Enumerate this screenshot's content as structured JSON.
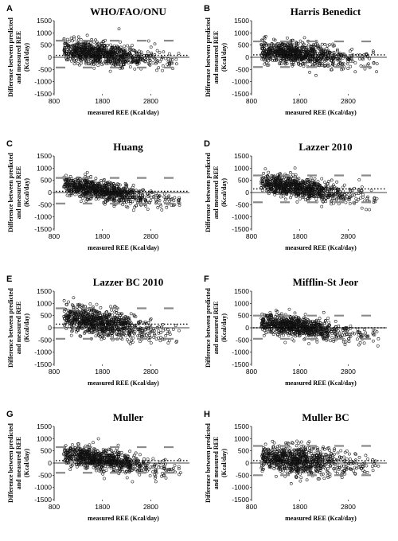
{
  "chart_data": [
    {
      "type": "scatter",
      "letter": "A",
      "title": "WHO/FAO/ONU",
      "xlabel": "measured REE    (Kcal/day)",
      "ylabel": [
        "Difference between predicted",
        "and measured REE",
        "(Kcal/day)"
      ],
      "xlim": [
        800,
        3600
      ],
      "ylim": [
        -1500,
        1500
      ],
      "xticks": [
        800,
        1800,
        2800
      ],
      "yticks": [
        1500,
        1000,
        500,
        0,
        -500,
        -1000,
        -1500
      ],
      "mean_bias": 80,
      "upper_loa": 680,
      "lower_loa": -420,
      "trend": {
        "x_center": 1800,
        "y_center": 150,
        "slope": -0.22,
        "spread": 230
      }
    },
    {
      "type": "scatter",
      "letter": "B",
      "title": "Harris Benedict",
      "xlabel": "measured REE    (Kcal/day)",
      "ylabel": [
        "Difference between predicted",
        "and measured REE",
        "(Kcal/day)"
      ],
      "xlim": [
        800,
        3600
      ],
      "ylim": [
        -1500,
        1500
      ],
      "xticks": [
        800,
        1800,
        2800
      ],
      "yticks": [
        1500,
        1000,
        500,
        0,
        -500,
        -1000,
        -1500
      ],
      "mean_bias": 100,
      "upper_loa": 650,
      "lower_loa": -400,
      "trend": {
        "x_center": 1800,
        "y_center": 130,
        "slope": -0.2,
        "spread": 220
      }
    },
    {
      "type": "scatter",
      "letter": "C",
      "title": "Huang",
      "xlabel": "measured REE    (Kcal/day)",
      "ylabel": [
        "Difference between predicted",
        "and measured REE",
        "(Kcal/day)"
      ],
      "xlim": [
        800,
        3600
      ],
      "ylim": [
        -1500,
        1500
      ],
      "xticks": [
        800,
        1800,
        2800
      ],
      "yticks": [
        1500,
        1000,
        500,
        0,
        -500,
        -1000,
        -1500
      ],
      "mean_bias": 50,
      "upper_loa": 600,
      "lower_loa": -450,
      "trend": {
        "x_center": 1800,
        "y_center": 80,
        "slope": -0.3,
        "spread": 200
      }
    },
    {
      "type": "scatter",
      "letter": "D",
      "title": "Lazzer 2010",
      "xlabel": "measured REE    (Kcal/day)",
      "ylabel": [
        "Difference between predicted",
        "and measured REE",
        "(Kcal/day)"
      ],
      "xlim": [
        800,
        3600
      ],
      "ylim": [
        -1500,
        1500
      ],
      "xticks": [
        800,
        1800,
        2800
      ],
      "yticks": [
        1500,
        1000,
        500,
        0,
        -500,
        -1000,
        -1500
      ],
      "mean_bias": 150,
      "upper_loa": 700,
      "lower_loa": -400,
      "trend": {
        "x_center": 1800,
        "y_center": 170,
        "slope": -0.3,
        "spread": 210
      }
    },
    {
      "type": "scatter",
      "letter": "E",
      "title": "Lazzer BC 2010",
      "xlabel": "measured REE    (Kcal/day)",
      "ylabel": [
        "Difference between predicted",
        "and measured REE",
        "(Kcal/day)"
      ],
      "xlim": [
        800,
        3600
      ],
      "ylim": [
        -1500,
        1500
      ],
      "xticks": [
        800,
        1800,
        2800
      ],
      "yticks": [
        1500,
        1000,
        500,
        0,
        -500,
        -1000,
        -1500
      ],
      "mean_bias": 150,
      "upper_loa": 800,
      "lower_loa": -450,
      "trend": {
        "x_center": 1800,
        "y_center": 200,
        "slope": -0.3,
        "spread": 270
      }
    },
    {
      "type": "scatter",
      "letter": "F",
      "title": "Mifflin-St Jeor",
      "xlabel": "measured REE    (Kcal/day)",
      "ylabel": [
        "Difference between predicted",
        "and measured REE",
        "(Kcal/day)"
      ],
      "xlim": [
        800,
        3600
      ],
      "ylim": [
        -1500,
        1500
      ],
      "xticks": [
        800,
        1800,
        2800
      ],
      "yticks": [
        1500,
        1000,
        500,
        0,
        -500,
        -1000,
        -1500
      ],
      "mean_bias": 0,
      "upper_loa": 500,
      "lower_loa": -450,
      "trend": {
        "x_center": 1800,
        "y_center": 30,
        "slope": -0.25,
        "spread": 200
      }
    },
    {
      "type": "scatter",
      "letter": "G",
      "title": "Muller",
      "xlabel": "measured REE    (Kcal/day)",
      "ylabel": [
        "Difference between predicted",
        "and measured REE",
        "(Kcal/day)"
      ],
      "xlim": [
        800,
        3600
      ],
      "ylim": [
        -1500,
        1500
      ],
      "xticks": [
        800,
        1800,
        2800
      ],
      "yticks": [
        1500,
        1000,
        500,
        0,
        -500,
        -1000,
        -1500
      ],
      "mean_bias": 100,
      "upper_loa": 650,
      "lower_loa": -400,
      "trend": {
        "x_center": 1800,
        "y_center": 140,
        "slope": -0.28,
        "spread": 210
      }
    },
    {
      "type": "scatter",
      "letter": "H",
      "title": "Muller BC",
      "xlabel": "measured REE    (Kcal/day)",
      "ylabel": [
        "Difference between predicted",
        "and measured REE",
        "(Kcal/day)"
      ],
      "xlim": [
        800,
        3600
      ],
      "ylim": [
        -1500,
        1500
      ],
      "xticks": [
        800,
        1800,
        2800
      ],
      "yticks": [
        1500,
        1000,
        500,
        0,
        -500,
        -1000,
        -1500
      ],
      "mean_bias": 100,
      "upper_loa": 700,
      "lower_loa": -500,
      "trend": {
        "x_center": 1800,
        "y_center": 120,
        "slope": -0.15,
        "spread": 280
      }
    }
  ]
}
